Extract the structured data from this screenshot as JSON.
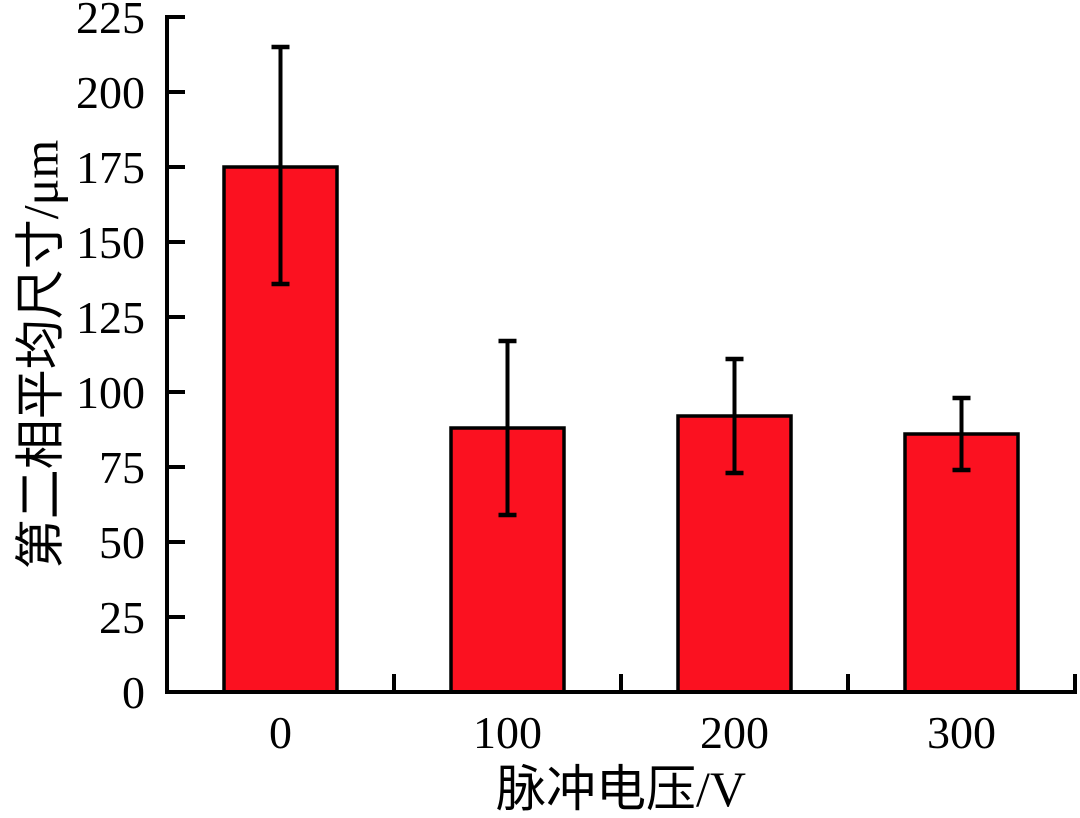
{
  "figure": {
    "background_color": "#FFFFFF"
  },
  "chart_data": {
    "type": "bar",
    "title": "",
    "xlabel": "脉冲电压/V",
    "ylabel": "第二相平均尺寸/μm",
    "categories": [
      "0",
      "100",
      "200",
      "300"
    ],
    "values": [
      175,
      88,
      92,
      86
    ],
    "errors": {
      "low": [
        136,
        59,
        73,
        74
      ],
      "high": [
        215,
        117,
        111,
        98
      ]
    },
    "ylim": [
      0,
      225
    ],
    "ytick_step": 25,
    "yticks": [
      0,
      25,
      50,
      75,
      100,
      125,
      150,
      175,
      200,
      225
    ],
    "grid": false,
    "legend": "none",
    "axes_style": "L-shaped, ticks pointing inward, no top/right spine",
    "bar_color": "#FB1120",
    "bar_border_color": "#000000",
    "error_bar_color": "#000000",
    "axis_color": "#000000",
    "tick_label_color": "#000000"
  }
}
